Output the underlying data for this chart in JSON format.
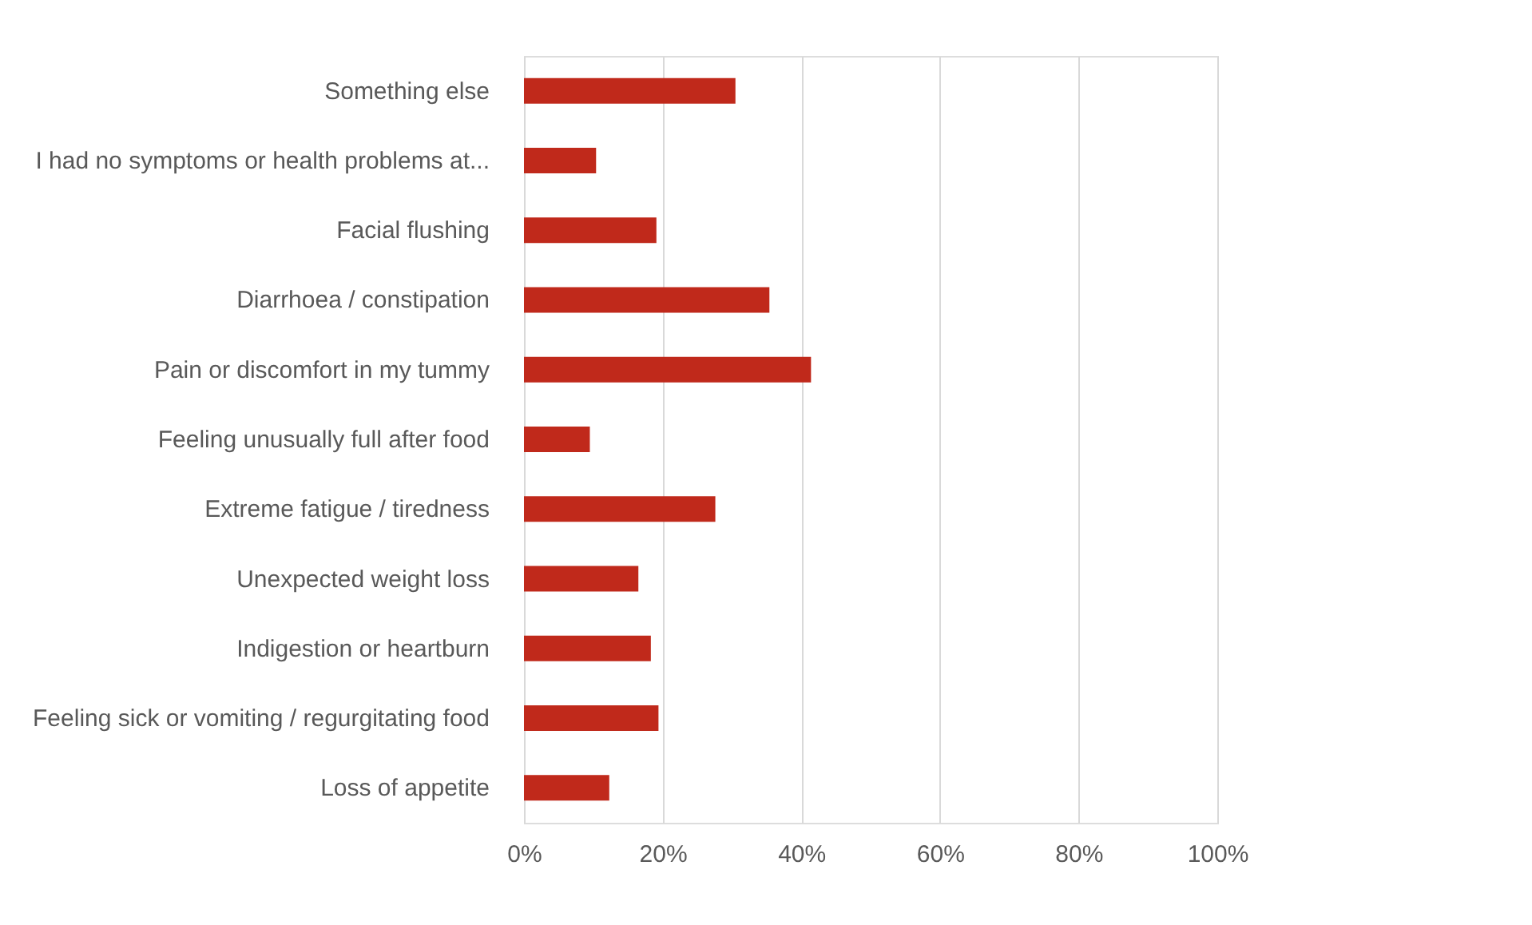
{
  "chart_data": {
    "type": "bar",
    "orientation": "horizontal",
    "categories": [
      "Something else",
      "I had no symptoms or health problems at...",
      "Facial flushing",
      "Diarrhoea / constipation",
      "Pain or discomfort in my tummy",
      "Feeling unusually full after food",
      "Extreme fatigue / tiredness",
      "Unexpected weight loss",
      "Indigestion or heartburn",
      "Feeling sick or vomiting / regurgitating food",
      "Loss of appetite"
    ],
    "values": [
      30.5,
      10.4,
      19.1,
      35.4,
      41.4,
      9.5,
      27.6,
      16.5,
      18.3,
      19.4,
      12.3
    ],
    "color": "#c0291b",
    "xlim": [
      0,
      100
    ],
    "xticks": [
      {
        "value": 0,
        "label": "0%"
      },
      {
        "value": 20,
        "label": "20%"
      },
      {
        "value": 40,
        "label": "40%"
      },
      {
        "value": 60,
        "label": "60%"
      },
      {
        "value": 80,
        "label": "80%"
      },
      {
        "value": 100,
        "label": "100%"
      }
    ],
    "grid": "x"
  }
}
